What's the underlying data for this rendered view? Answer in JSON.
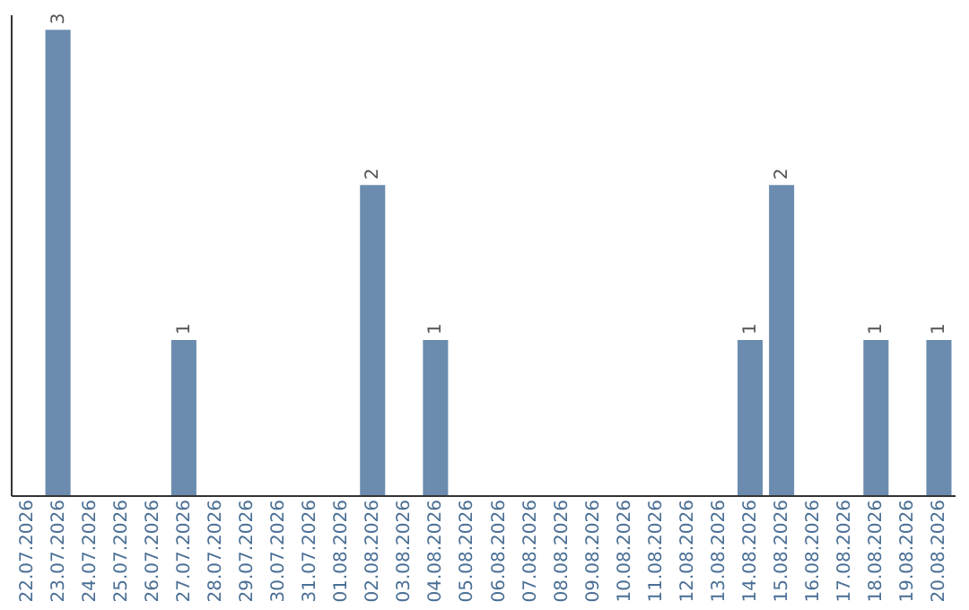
{
  "chart_data": {
    "type": "bar",
    "categories": [
      "22.07.2026",
      "23.07.2026",
      "24.07.2026",
      "25.07.2026",
      "26.07.2026",
      "27.07.2026",
      "28.07.2026",
      "29.07.2026",
      "30.07.2026",
      "31.07.2026",
      "01.08.2026",
      "02.08.2026",
      "03.08.2026",
      "04.08.2026",
      "05.08.2026",
      "06.08.2026",
      "07.08.2026",
      "08.08.2026",
      "09.08.2026",
      "10.08.2026",
      "11.08.2026",
      "12.08.2026",
      "13.08.2026",
      "14.08.2026",
      "15.08.2026",
      "16.08.2026",
      "17.08.2026",
      "18.08.2026",
      "19.08.2026",
      "20.08.2026"
    ],
    "values": [
      null,
      3,
      null,
      null,
      null,
      1,
      null,
      null,
      null,
      null,
      null,
      2,
      null,
      1,
      null,
      null,
      null,
      null,
      null,
      null,
      null,
      null,
      null,
      1,
      2,
      null,
      null,
      1,
      null,
      1
    ],
    "color": "#6b8cae",
    "ylim": [
      0,
      3.1
    ],
    "data_labels": true,
    "tick_labels": "x",
    "grid": false
  }
}
